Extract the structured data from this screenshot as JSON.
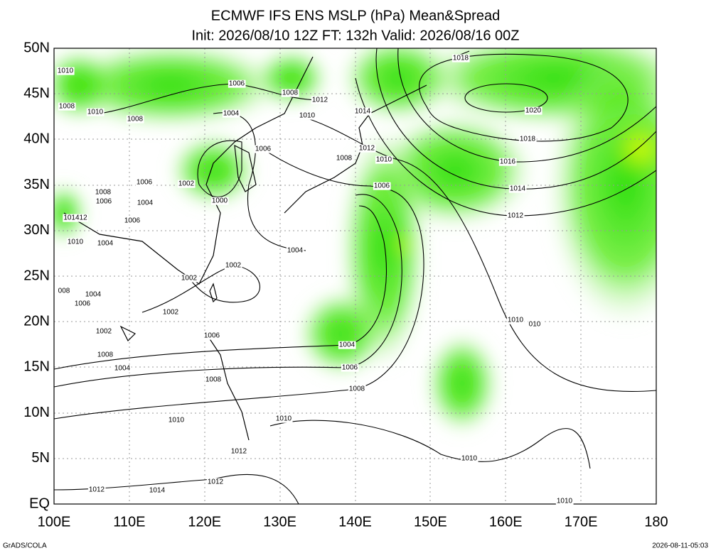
{
  "header": {
    "title": "ECMWF IFS ENS MSLP (hPa) Mean&Spread",
    "subtitle": "Init: 2026/08/10 12Z  FT: 132h  Valid: 2026/08/16 00Z"
  },
  "map": {
    "lat_labels": [
      "EQ",
      "5N",
      "10N",
      "15N",
      "20N",
      "25N",
      "30N",
      "35N",
      "40N",
      "45N",
      "50N"
    ],
    "lon_labels": [
      "100E",
      "110E",
      "120E",
      "130E",
      "140E",
      "150E",
      "160E",
      "170E",
      "180"
    ],
    "contour_labels": [
      "1010",
      "1008",
      "1010",
      "1008",
      "1006",
      "1008",
      "1012",
      "1004",
      "1010",
      "1014",
      "1018",
      "1020",
      "1018",
      "1016",
      "1014",
      "1012",
      "1006",
      "1012",
      "1008",
      "1010",
      "1006",
      "1006",
      "1002",
      "1000",
      "1004",
      "1006",
      "1004",
      "1006",
      "1008",
      "101412",
      "1010",
      "1004",
      "1002",
      "1002",
      "1002",
      "008",
      "1004",
      "1006",
      "1002",
      "1006",
      "1004",
      "1006",
      "1008",
      "1004",
      "1008",
      "1008",
      "1010",
      "1010",
      "1012",
      "1010",
      "1010",
      "010",
      "1012",
      "1012",
      "1014",
      "1010"
    ]
  },
  "footer": {
    "left": "GrADS/COLA",
    "right": "2026-08-11-05:03"
  }
}
